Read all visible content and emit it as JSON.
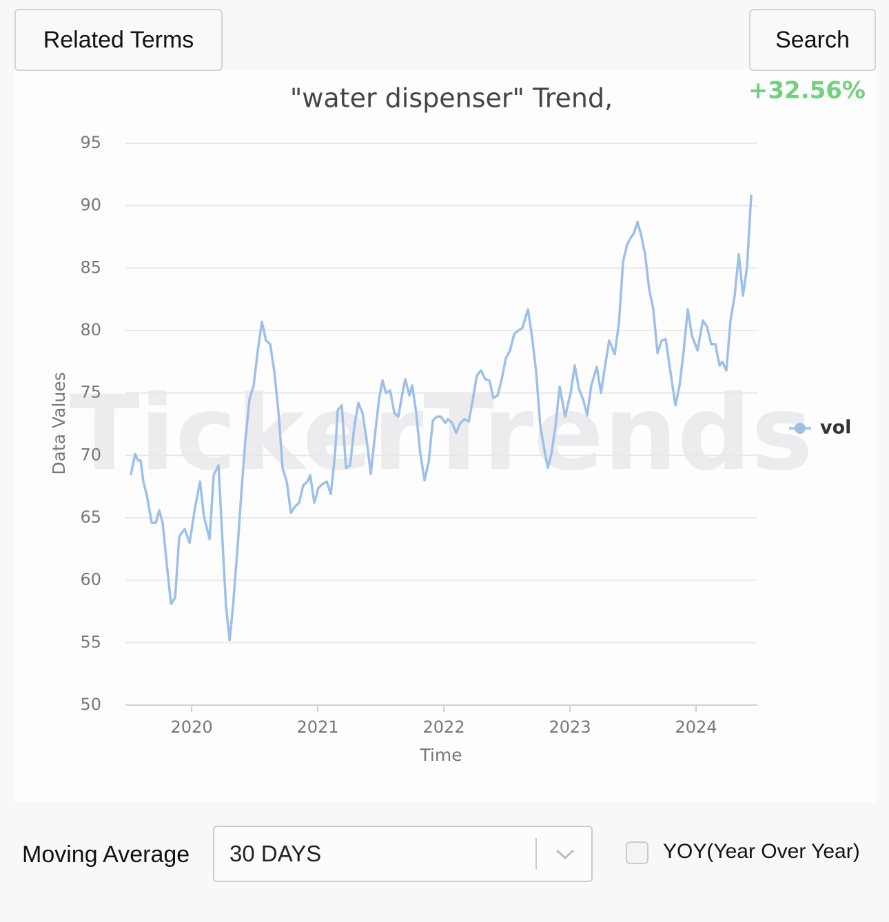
{
  "header": {
    "left_button": "Related Terms",
    "right_button": "Search"
  },
  "chart_data": {
    "type": "line",
    "title": "\"water dispenser\" Trend,",
    "annotation": "+32.56%",
    "watermark": "TickerTrends",
    "x_label": "Time",
    "y_label": "Data Values",
    "x": [
      2019.519,
      2019.552,
      2019.574,
      2019.596,
      2019.617,
      2019.645,
      2019.683,
      2019.716,
      2019.743,
      2019.77,
      2019.803,
      2019.836,
      2019.869,
      2019.902,
      2019.945,
      2019.984,
      2020.027,
      2020.066,
      2020.098,
      2020.142,
      2020.175,
      2020.213,
      2020.24,
      2020.273,
      2020.301,
      2020.328,
      2020.366,
      2020.393,
      2020.426,
      2020.459,
      2020.492,
      2020.525,
      2020.557,
      2020.59,
      2020.623,
      2020.656,
      2020.689,
      2020.721,
      2020.754,
      2020.787,
      2020.82,
      2020.852,
      2020.885,
      2020.918,
      2020.94,
      2020.973,
      2021.005,
      2021.038,
      2021.071,
      2021.104,
      2021.137,
      2021.158,
      2021.191,
      2021.224,
      2021.257,
      2021.29,
      2021.322,
      2021.355,
      2021.388,
      2021.421,
      2021.454,
      2021.486,
      2021.514,
      2021.541,
      2021.574,
      2021.607,
      2021.639,
      2021.672,
      2021.694,
      2021.727,
      2021.749,
      2021.781,
      2021.814,
      2021.847,
      2021.88,
      2021.913,
      2021.945,
      2021.978,
      2022.011,
      2022.033,
      2022.066,
      2022.098,
      2022.131,
      2022.164,
      2022.197,
      2022.23,
      2022.262,
      2022.295,
      2022.328,
      2022.361,
      2022.393,
      2022.426,
      2022.459,
      2022.492,
      2022.525,
      2022.557,
      2022.59,
      2022.623,
      2022.667,
      2022.699,
      2022.732,
      2022.765,
      2022.798,
      2022.825,
      2022.852,
      2022.885,
      2022.918,
      2022.962,
      2023.005,
      2023.038,
      2023.071,
      2023.104,
      2023.137,
      2023.169,
      2023.213,
      2023.246,
      2023.279,
      2023.311,
      2023.355,
      2023.388,
      2023.421,
      2023.453,
      2023.486,
      2023.508,
      2023.535,
      2023.563,
      2023.596,
      2023.628,
      2023.661,
      2023.694,
      2023.727,
      2023.76,
      2023.792,
      2023.836,
      2023.869,
      2023.902,
      2023.934,
      2023.967,
      2024.011,
      2024.054,
      2024.087,
      2024.12,
      2024.153,
      2024.186,
      2024.208,
      2024.24,
      2024.273,
      2024.306,
      2024.339,
      2024.372,
      2024.404,
      2024.437
    ],
    "series": [
      {
        "name": "vol",
        "color": "#9dc0ea",
        "values": [
          68.5,
          70.1,
          69.6,
          69.6,
          67.9,
          66.8,
          64.6,
          64.6,
          65.6,
          64.6,
          61.3,
          58.1,
          58.6,
          63.5,
          64.1,
          63.0,
          65.8,
          67.9,
          65.1,
          63.3,
          68.4,
          69.2,
          64.0,
          57.9,
          55.2,
          57.9,
          62.9,
          66.8,
          71.2,
          74.5,
          75.6,
          78.4,
          80.7,
          79.2,
          78.9,
          76.7,
          73.4,
          69.0,
          67.9,
          65.4,
          65.9,
          66.2,
          67.6,
          67.9,
          68.4,
          66.2,
          67.4,
          67.7,
          67.9,
          66.9,
          70.1,
          73.6,
          74.0,
          69.0,
          69.2,
          72.3,
          74.2,
          73.4,
          71.2,
          68.5,
          71.7,
          74.5,
          76.0,
          75.0,
          75.2,
          73.4,
          73.1,
          75.0,
          76.1,
          74.8,
          75.6,
          73.4,
          70.1,
          68.0,
          69.5,
          72.8,
          73.1,
          73.1,
          72.6,
          72.9,
          72.6,
          71.8,
          72.6,
          72.9,
          72.7,
          74.5,
          76.4,
          76.8,
          76.1,
          76.0,
          74.6,
          74.8,
          76.1,
          77.8,
          78.4,
          79.7,
          80.0,
          80.2,
          81.7,
          79.5,
          76.7,
          72.3,
          70.4,
          69.0,
          70.1,
          72.3,
          75.5,
          73.1,
          75.0,
          77.2,
          75.3,
          74.5,
          73.2,
          75.6,
          77.1,
          75.0,
          77.2,
          79.2,
          78.1,
          80.6,
          85.5,
          86.9,
          87.5,
          87.8,
          88.7,
          87.7,
          86.1,
          83.3,
          81.7,
          78.2,
          79.2,
          79.3,
          77.0,
          74.0,
          75.6,
          78.4,
          81.7,
          79.6,
          78.4,
          80.8,
          80.3,
          78.9,
          78.9,
          77.2,
          77.5,
          76.8,
          80.8,
          82.8,
          86.1,
          82.8,
          85.1,
          90.8
        ]
      }
    ],
    "xlim": [
      2019.475,
      2024.486
    ],
    "xticks": [
      2020,
      2021,
      2022,
      2023,
      2024
    ],
    "ylim": [
      50,
      95
    ],
    "yticks": [
      50,
      55,
      60,
      65,
      70,
      75,
      80,
      85,
      90,
      95
    ],
    "grid": true,
    "legend": "right"
  },
  "controls": {
    "moving_average_label": "Moving Average",
    "moving_average_value": "30 DAYS",
    "yoy_label": "YOY(Year Over Year)"
  }
}
